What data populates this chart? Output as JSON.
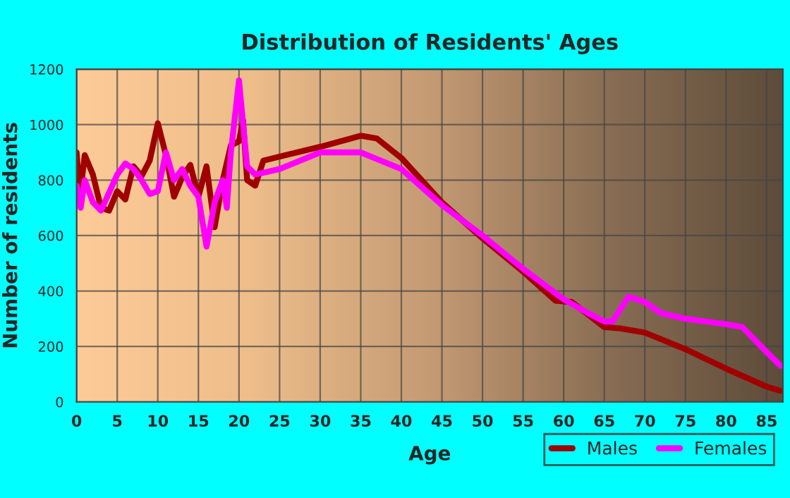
{
  "chart_data": {
    "type": "line",
    "title": "Distribution of Residents' Ages",
    "xlabel": "Age",
    "ylabel": "Number of residents",
    "xlim": [
      0,
      87
    ],
    "xticks": [
      0,
      5,
      10,
      15,
      20,
      25,
      30,
      35,
      40,
      45,
      50,
      55,
      60,
      65,
      70,
      75,
      80,
      85
    ],
    "ylim": [
      0,
      1200
    ],
    "yticks": [
      0,
      200,
      400,
      600,
      800,
      1000,
      1200
    ],
    "grid": true,
    "legend": "bottom right",
    "line_style": "solid",
    "marker": "none",
    "series": [
      {
        "name": "Males",
        "color": "#a00000",
        "x": [
          0,
          0.4,
          1,
          2,
          3,
          4,
          5,
          6,
          7,
          8,
          9,
          10,
          11,
          12,
          13,
          14,
          15,
          16,
          17,
          18,
          19,
          20,
          20.5,
          21,
          22,
          23,
          25,
          30,
          35,
          37,
          40,
          45,
          50,
          55,
          59,
          61,
          65,
          67,
          70,
          75,
          80,
          85,
          86.7
        ],
        "values": [
          900,
          740,
          890,
          820,
          700,
          690,
          760,
          730,
          850,
          815,
          870,
          1005,
          890,
          740,
          810,
          855,
          740,
          850,
          630,
          800,
          925,
          940,
          1015,
          800,
          780,
          870,
          885,
          920,
          960,
          950,
          880,
          720,
          590,
          470,
          365,
          360,
          270,
          265,
          250,
          190,
          120,
          55,
          40
        ]
      },
      {
        "name": "Females",
        "color": "#ff00ff",
        "x": [
          0,
          0.5,
          1,
          2,
          3,
          5,
          6,
          7,
          8,
          9,
          10,
          11,
          12,
          13,
          14,
          15,
          16,
          17,
          18,
          18.5,
          19,
          20,
          21,
          22,
          25,
          30,
          35,
          40,
          45,
          50,
          55,
          60,
          63,
          65,
          66,
          68,
          70,
          72,
          75,
          80,
          82,
          85,
          86.7
        ],
        "values": [
          780,
          700,
          800,
          720,
          690,
          820,
          860,
          840,
          800,
          750,
          760,
          900,
          800,
          840,
          780,
          740,
          560,
          720,
          800,
          700,
          900,
          1160,
          850,
          820,
          840,
          900,
          900,
          840,
          710,
          600,
          480,
          370,
          320,
          290,
          290,
          380,
          360,
          320,
          300,
          280,
          270,
          180,
          130
        ]
      }
    ]
  }
}
